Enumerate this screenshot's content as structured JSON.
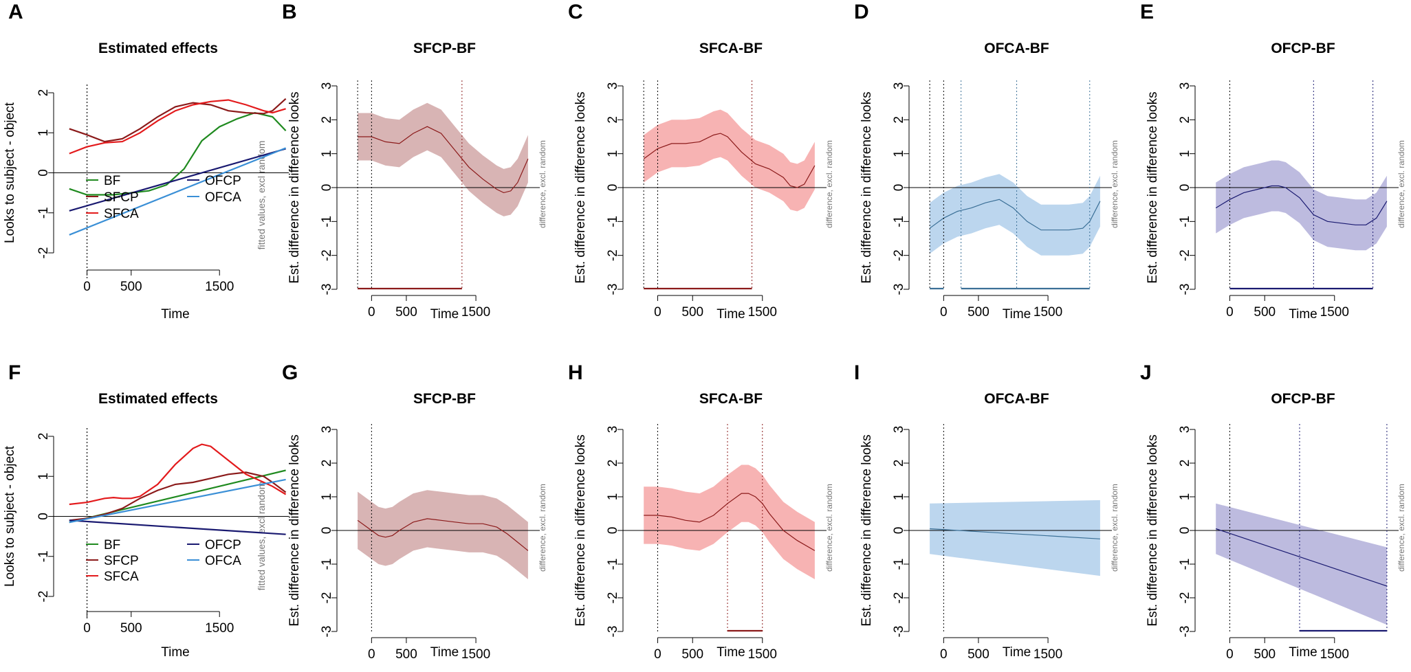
{
  "figure": {
    "colors": {
      "BF": "#1f8a1f",
      "SFCP": "#8b1a1a",
      "SFCA": "#e31a1c",
      "OFCP": "#191970",
      "OFCA": "#3a8fd6",
      "SFCP-BF": {
        "line": "#8b1a1a",
        "fill": "#d8b4b4"
      },
      "SFCA-BF": {
        "line": "#8b1a1a",
        "fill": "#f7b3b3"
      },
      "OFCA-BF": {
        "line": "#3a6f96",
        "fill": "#bcd6ee"
      },
      "OFCP-BF": {
        "line": "#191970",
        "fill": "#bdbbdf"
      }
    }
  },
  "chart_data": [
    {
      "panel": "A",
      "type": "line",
      "title": "Estimated effects",
      "xlabel": "Time",
      "ylabel": "Looks to subject - object",
      "right_label": "fitted values, excl random",
      "xlim": [
        -300,
        2300
      ],
      "ylim": [
        -2,
        2
      ],
      "xticks": [
        0,
        500,
        1500
      ],
      "yticks": [
        -2,
        -1,
        0,
        1,
        2
      ],
      "vlines": [
        0
      ],
      "legend": [
        "BF",
        "SFCP",
        "SFCA",
        "OFCP",
        "OFCA"
      ],
      "series": [
        {
          "name": "BF",
          "x": [
            -200,
            0,
            300,
            700,
            900,
            1100,
            1300,
            1500,
            1700,
            1900,
            2100,
            2250
          ],
          "y": [
            -0.4,
            -0.55,
            -0.55,
            -0.45,
            -0.3,
            0.1,
            0.8,
            1.15,
            1.35,
            1.5,
            1.4,
            1.05
          ]
        },
        {
          "name": "SFCP",
          "x": [
            -200,
            0,
            200,
            400,
            600,
            800,
            1000,
            1200,
            1400,
            1600,
            1800,
            2000,
            2100,
            2250
          ],
          "y": [
            1.1,
            0.95,
            0.78,
            0.85,
            1.1,
            1.4,
            1.65,
            1.75,
            1.7,
            1.55,
            1.5,
            1.48,
            1.55,
            1.85
          ]
        },
        {
          "name": "SFCA",
          "x": [
            -200,
            0,
            200,
            400,
            600,
            800,
            1000,
            1200,
            1400,
            1600,
            1800,
            2000,
            2100,
            2250
          ],
          "y": [
            0.48,
            0.65,
            0.75,
            0.78,
            1.0,
            1.3,
            1.55,
            1.7,
            1.78,
            1.82,
            1.7,
            1.55,
            1.5,
            1.6
          ]
        },
        {
          "name": "OFCP",
          "x": [
            -200,
            2250
          ],
          "y": [
            -0.95,
            0.6
          ]
        },
        {
          "name": "OFCA",
          "x": [
            -200,
            2250
          ],
          "y": [
            -1.55,
            0.62
          ]
        }
      ]
    },
    {
      "panel": "B",
      "type": "area",
      "title": "SFCP-BF",
      "key": "SFCP-BF",
      "xlabel": "Time",
      "ylabel": "Est. difference in difference looks",
      "right_label": "difference, excl. random",
      "xlim": [
        -300,
        2300
      ],
      "ylim": [
        -3,
        3
      ],
      "xticks": [
        0,
        500,
        1500
      ],
      "yticks": [
        -3,
        -2,
        -1,
        0,
        1,
        2,
        3
      ],
      "vlines": [
        -200,
        0,
        1300
      ],
      "sig_intervals": [
        [
          -200,
          1300
        ]
      ],
      "x": [
        -200,
        0,
        200,
        400,
        600,
        800,
        1000,
        1200,
        1400,
        1600,
        1800,
        1900,
        2000,
        2100,
        2250
      ],
      "y": [
        1.5,
        1.5,
        1.35,
        1.3,
        1.6,
        1.8,
        1.6,
        1.1,
        0.6,
        0.25,
        -0.05,
        -0.15,
        -0.1,
        0.15,
        0.85
      ],
      "ci": 0.7
    },
    {
      "panel": "C",
      "type": "area",
      "title": "SFCA-BF",
      "key": "SFCA-BF",
      "xlabel": "Time",
      "ylabel": "Est. difference in difference looks",
      "right_label": "difference, excl. random",
      "xlim": [
        -300,
        2300
      ],
      "ylim": [
        -3,
        3
      ],
      "xticks": [
        0,
        500,
        1500
      ],
      "yticks": [
        -3,
        -2,
        -1,
        0,
        1,
        2,
        3
      ],
      "vlines": [
        -200,
        0,
        1350
      ],
      "sig_intervals": [
        [
          -200,
          1350
        ]
      ],
      "x": [
        -200,
        0,
        200,
        400,
        600,
        800,
        900,
        1000,
        1200,
        1400,
        1600,
        1800,
        1900,
        2000,
        2100,
        2250
      ],
      "y": [
        0.85,
        1.15,
        1.3,
        1.3,
        1.35,
        1.55,
        1.6,
        1.5,
        1.05,
        0.7,
        0.55,
        0.3,
        0.05,
        0.0,
        0.1,
        0.65
      ],
      "ci": 0.7
    },
    {
      "panel": "D",
      "type": "area",
      "title": "OFCA-BF",
      "key": "OFCA-BF",
      "xlabel": "Time",
      "ylabel": "Est. difference in difference looks",
      "right_label": "difference, excl. random",
      "xlim": [
        -300,
        2300
      ],
      "ylim": [
        -3,
        3
      ],
      "xticks": [
        0,
        500,
        1500
      ],
      "yticks": [
        -3,
        -2,
        -1,
        0,
        1,
        2,
        3
      ],
      "vlines": [
        -200,
        0,
        250,
        1050,
        2100
      ],
      "sig_intervals": [
        [
          -200,
          0
        ],
        [
          250,
          1050
        ],
        [
          1050,
          2100
        ]
      ],
      "x": [
        -200,
        0,
        200,
        400,
        600,
        800,
        1000,
        1200,
        1400,
        1600,
        1800,
        2000,
        2100,
        2250
      ],
      "y": [
        -1.2,
        -0.9,
        -0.7,
        -0.6,
        -0.45,
        -0.35,
        -0.6,
        -1.0,
        -1.25,
        -1.25,
        -1.25,
        -1.2,
        -1.0,
        -0.4
      ],
      "ci": 0.75
    },
    {
      "panel": "E",
      "type": "area",
      "title": "OFCP-BF",
      "key": "OFCP-BF",
      "xlabel": "Time",
      "ylabel": "Est. difference in difference looks",
      "right_label": "difference, excl. random",
      "xlim": [
        -300,
        2300
      ],
      "ylim": [
        -3,
        3
      ],
      "xticks": [
        0,
        500,
        1500
      ],
      "yticks": [
        -3,
        -2,
        -1,
        0,
        1,
        2,
        3
      ],
      "vlines": [
        0,
        1200,
        2050
      ],
      "sig_intervals": [
        [
          0,
          1200
        ],
        [
          1200,
          2050
        ]
      ],
      "x": [
        -200,
        0,
        200,
        400,
        600,
        700,
        800,
        1000,
        1200,
        1400,
        1600,
        1800,
        1950,
        2100,
        2250
      ],
      "y": [
        -0.6,
        -0.35,
        -0.15,
        -0.05,
        0.05,
        0.05,
        0.0,
        -0.3,
        -0.8,
        -1.0,
        -1.05,
        -1.1,
        -1.1,
        -0.9,
        -0.4
      ],
      "ci": 0.75
    },
    {
      "panel": "F",
      "type": "line",
      "title": "Estimated effects",
      "xlabel": "Time",
      "ylabel": "Looks to subject - object",
      "right_label": "fitted values, excl random",
      "xlim": [
        -300,
        2300
      ],
      "ylim": [
        -2,
        2
      ],
      "xticks": [
        0,
        500,
        1500
      ],
      "yticks": [
        -2,
        -1,
        0,
        1,
        2
      ],
      "vlines": [
        0
      ],
      "legend": [
        "BF",
        "SFCP",
        "SFCA",
        "OFCP",
        "OFCA"
      ],
      "series": [
        {
          "name": "BF",
          "x": [
            -200,
            2250
          ],
          "y": [
            -0.15,
            1.15
          ]
        },
        {
          "name": "SFCP",
          "x": [
            -200,
            0,
            200,
            400,
            600,
            800,
            1000,
            1200,
            1400,
            1600,
            1800,
            2000,
            2100,
            2250
          ],
          "y": [
            -0.1,
            -0.05,
            0.05,
            0.2,
            0.45,
            0.65,
            0.8,
            0.85,
            0.95,
            1.05,
            1.1,
            1.0,
            0.85,
            0.6
          ]
        },
        {
          "name": "SFCA",
          "x": [
            -200,
            0,
            200,
            300,
            400,
            500,
            600,
            800,
            1000,
            1200,
            1300,
            1400,
            1600,
            1800,
            2000,
            2100,
            2250
          ],
          "y": [
            0.3,
            0.35,
            0.45,
            0.47,
            0.45,
            0.45,
            0.5,
            0.8,
            1.3,
            1.7,
            1.8,
            1.75,
            1.4,
            1.05,
            0.85,
            0.75,
            0.55
          ]
        },
        {
          "name": "OFCP",
          "x": [
            -200,
            2250
          ],
          "y": [
            -0.1,
            -0.45
          ]
        },
        {
          "name": "OFCA",
          "x": [
            -200,
            2250
          ],
          "y": [
            -0.15,
            0.92
          ]
        }
      ]
    },
    {
      "panel": "G",
      "type": "area",
      "title": "SFCP-BF",
      "key": "SFCP-BF",
      "xlabel": "Time",
      "ylabel": "Est. difference in difference looks",
      "right_label": "difference, excl. random",
      "xlim": [
        -300,
        2300
      ],
      "ylim": [
        -3,
        3
      ],
      "xticks": [
        0,
        500,
        1500
      ],
      "yticks": [
        -3,
        -2,
        -1,
        0,
        1,
        2,
        3
      ],
      "vlines": [
        0
      ],
      "sig_intervals": [],
      "x": [
        -200,
        0,
        100,
        200,
        300,
        400,
        600,
        800,
        1000,
        1200,
        1400,
        1600,
        1800,
        1950,
        2100,
        2250
      ],
      "y": [
        0.3,
        0.0,
        -0.15,
        -0.2,
        -0.15,
        0.0,
        0.25,
        0.35,
        0.3,
        0.25,
        0.2,
        0.2,
        0.1,
        -0.1,
        -0.35,
        -0.6
      ],
      "ci": 0.85
    },
    {
      "panel": "H",
      "type": "area",
      "title": "SFCA-BF",
      "key": "SFCA-BF",
      "xlabel": "Time",
      "ylabel": "Est. difference in difference looks",
      "right_label": "difference, excl. random",
      "xlim": [
        -300,
        2300
      ],
      "ylim": [
        -3,
        3
      ],
      "xticks": [
        0,
        500,
        1500
      ],
      "yticks": [
        -3,
        -2,
        -1,
        0,
        1,
        2,
        3
      ],
      "vlines": [
        0,
        1000,
        1500
      ],
      "sig_intervals": [
        [
          1000,
          1500
        ]
      ],
      "x": [
        -200,
        0,
        200,
        400,
        600,
        800,
        1000,
        1200,
        1300,
        1400,
        1500,
        1600,
        1800,
        2000,
        2250
      ],
      "y": [
        0.45,
        0.45,
        0.4,
        0.3,
        0.25,
        0.45,
        0.8,
        1.1,
        1.1,
        1.0,
        0.8,
        0.5,
        0.0,
        -0.3,
        -0.6
      ],
      "ci": 0.85
    },
    {
      "panel": "I",
      "type": "area",
      "title": "OFCA-BF",
      "key": "OFCA-BF",
      "xlabel": "Time",
      "ylabel": "Est. difference in difference looks",
      "right_label": "difference, excl. random",
      "xlim": [
        -300,
        2300
      ],
      "ylim": [
        -3,
        3
      ],
      "xticks": [
        0,
        500,
        1500
      ],
      "yticks": [
        -3,
        -2,
        -1,
        0,
        1,
        2,
        3
      ],
      "vlines": [
        0
      ],
      "sig_intervals": [],
      "x": [
        -200,
        2250
      ],
      "y": [
        0.05,
        -0.25
      ],
      "ci_lower": [
        -0.7,
        -1.35
      ],
      "ci_upper": [
        0.8,
        0.9
      ]
    },
    {
      "panel": "J",
      "type": "area",
      "title": "OFCP-BF",
      "key": "OFCP-BF",
      "xlabel": "Time",
      "ylabel": "Est. difference in difference looks",
      "right_label": "difference, excl. random",
      "xlim": [
        -300,
        2300
      ],
      "ylim": [
        -3,
        3
      ],
      "xticks": [
        0,
        500,
        1500
      ],
      "yticks": [
        -3,
        -2,
        -1,
        0,
        1,
        2,
        3
      ],
      "vlines": [
        0,
        1000,
        2250
      ],
      "sig_intervals": [
        [
          1000,
          2250
        ]
      ],
      "x": [
        -200,
        2250
      ],
      "y": [
        0.05,
        -1.65
      ],
      "ci_lower": [
        -0.7,
        -2.8
      ],
      "ci_upper": [
        0.8,
        -0.5
      ]
    }
  ]
}
